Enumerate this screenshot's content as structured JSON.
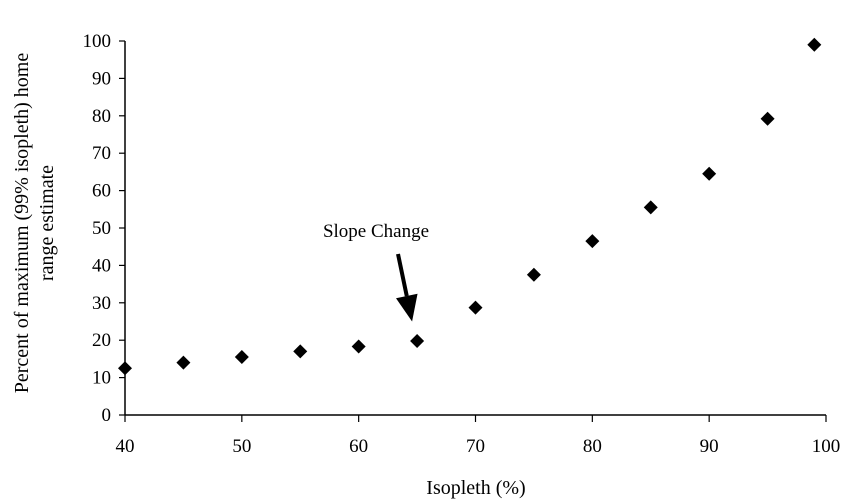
{
  "chart_data": {
    "type": "scatter",
    "title": "",
    "xlabel": "Isopleth (%)",
    "ylabel_lines": [
      "Percent of maximum (99% isopleth) home",
      "range estimate"
    ],
    "xlim": [
      40,
      100
    ],
    "ylim": [
      0,
      100
    ],
    "xticks": [
      "40",
      "50",
      "60",
      "70",
      "80",
      "90",
      "100"
    ],
    "yticks": [
      "0",
      "10",
      "20",
      "30",
      "40",
      "50",
      "60",
      "70",
      "80",
      "90",
      "100"
    ],
    "grid": false,
    "legend": "none",
    "marker": "diamond",
    "marker_color": "#000000",
    "series": [
      {
        "x": [
          40,
          45,
          50,
          55,
          60,
          65,
          70,
          75,
          80,
          85,
          90,
          95,
          99
        ],
        "y": [
          12.5,
          14,
          15.5,
          17,
          18.3,
          19.8,
          28.7,
          37.5,
          46.5,
          55.5,
          64.5,
          79.2,
          99
        ]
      }
    ],
    "annotations": [
      {
        "text": "Slope Change",
        "arrow_to": {
          "x": 65,
          "y": 25
        }
      }
    ]
  }
}
